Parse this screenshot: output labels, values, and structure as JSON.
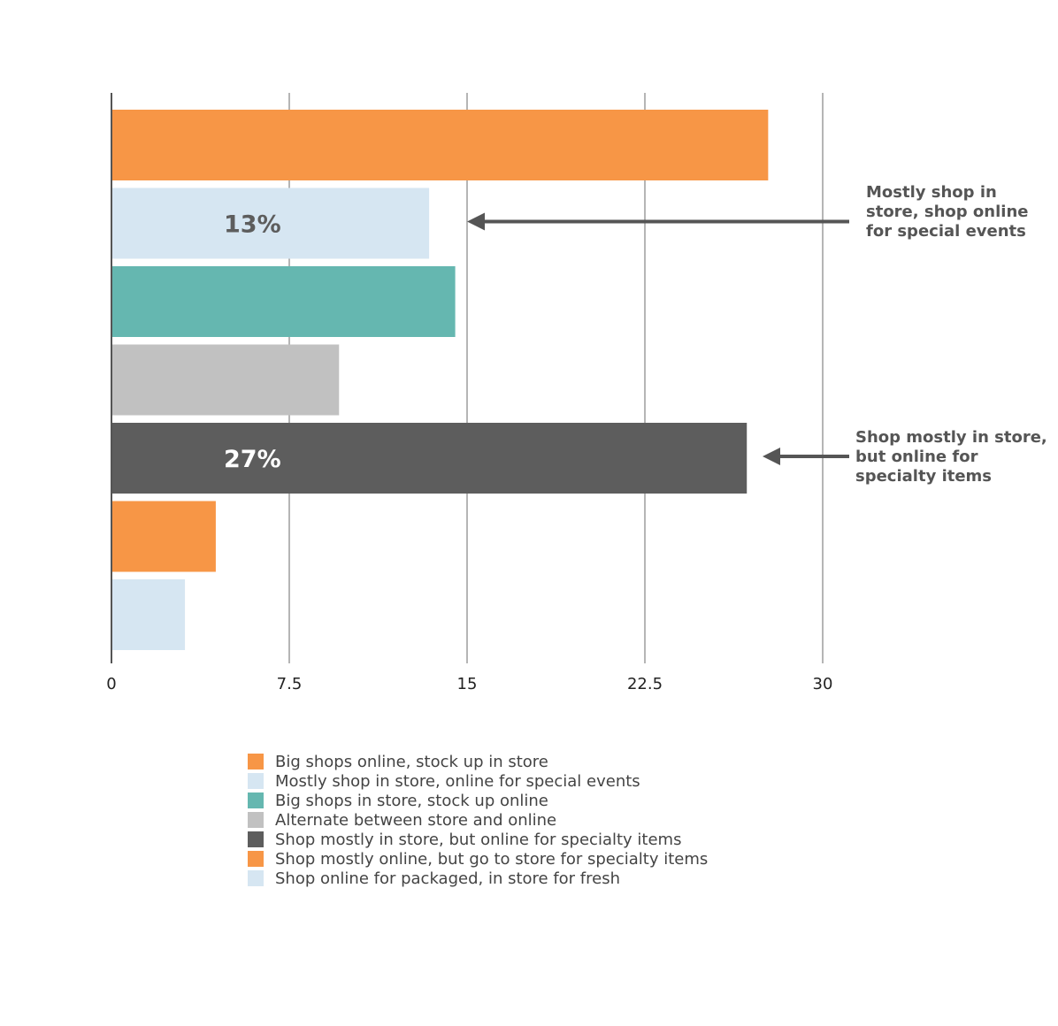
{
  "chart_data": {
    "type": "bar",
    "orientation": "horizontal",
    "categories": [
      "Big shops online, stock up in store",
      "Mostly shop in store, online for special events",
      "Big shops in store, stock up online",
      "Alternate between store and online",
      "Shop mostly in store, but online for specialty items",
      "Shop mostly online, but go to store for specialty items",
      "Shop online for packaged, in store for fresh"
    ],
    "values": [
      27.7,
      13.4,
      14.5,
      9.6,
      26.8,
      4.4,
      3.1
    ],
    "colors": [
      "#f79646",
      "#d6e6f2",
      "#65b7b0",
      "#c1c1c1",
      "#5d5d5d",
      "#f79646",
      "#d6e6f2"
    ],
    "bar_labels": [
      {
        "index": 1,
        "text": "13%",
        "color": "#5d5d5d"
      },
      {
        "index": 4,
        "text": "27%",
        "color": "#ffffff"
      }
    ],
    "xlim": [
      0,
      30
    ],
    "xticks": [
      "0",
      "7.5",
      "15",
      "22.5",
      "30"
    ],
    "grid": true,
    "legend_placement": "bottom",
    "annotations": [
      {
        "text": "Mostly shop in store, shop online for special events",
        "target_index": 1
      },
      {
        "text": "Shop mostly in store, but online for specialty items",
        "target_index": 4
      }
    ],
    "title": "",
    "xlabel": "",
    "ylabel": ""
  }
}
